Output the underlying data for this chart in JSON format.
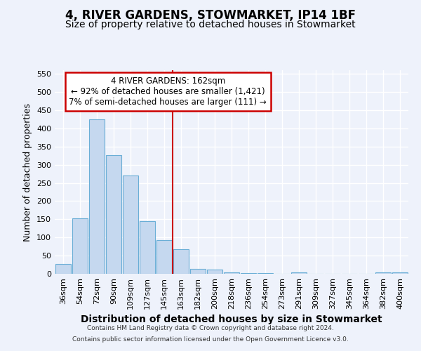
{
  "title": "4, RIVER GARDENS, STOWMARKET, IP14 1BF",
  "subtitle": "Size of property relative to detached houses in Stowmarket",
  "xlabel": "Distribution of detached houses by size in Stowmarket",
  "ylabel": "Number of detached properties",
  "categories": [
    "36sqm",
    "54sqm",
    "72sqm",
    "90sqm",
    "109sqm",
    "127sqm",
    "145sqm",
    "163sqm",
    "182sqm",
    "200sqm",
    "218sqm",
    "236sqm",
    "254sqm",
    "273sqm",
    "291sqm",
    "309sqm",
    "327sqm",
    "345sqm",
    "364sqm",
    "382sqm",
    "400sqm"
  ],
  "values": [
    27,
    153,
    424,
    327,
    270,
    145,
    92,
    68,
    13,
    11,
    4,
    2,
    1,
    0,
    3,
    0,
    0,
    0,
    0,
    3,
    3
  ],
  "bar_color": "#c5d8ef",
  "bar_edge_color": "#6aaed6",
  "vline_color": "#cc0000",
  "annotation_text": "4 RIVER GARDENS: 162sqm\n← 92% of detached houses are smaller (1,421)\n7% of semi-detached houses are larger (111) →",
  "annotation_box_color": "#ffffff",
  "annotation_box_edge": "#cc0000",
  "ylim": [
    0,
    560
  ],
  "yticks": [
    0,
    50,
    100,
    150,
    200,
    250,
    300,
    350,
    400,
    450,
    500,
    550
  ],
  "footer_line1": "Contains HM Land Registry data © Crown copyright and database right 2024.",
  "footer_line2": "Contains public sector information licensed under the Open Government Licence v3.0.",
  "bg_color": "#eef2fb",
  "grid_color": "#ffffff",
  "title_fontsize": 12,
  "subtitle_fontsize": 10,
  "tick_fontsize": 8,
  "ylabel_fontsize": 9,
  "xlabel_fontsize": 10
}
